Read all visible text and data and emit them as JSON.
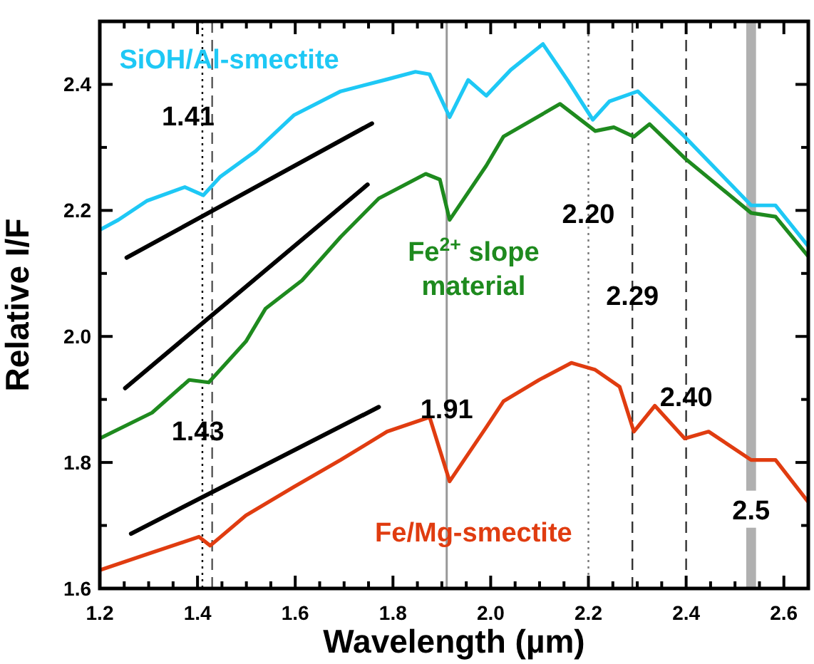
{
  "chart_data": {
    "type": "line",
    "xlabel": "Wavelength (µm)",
    "ylabel": "Relative I/F",
    "xlim": [
      1.2,
      2.65
    ],
    "ylim": [
      1.6,
      2.5
    ],
    "xticks": [
      1.2,
      {
        "value": 1.25,
        "label": null
      },
      {
        "value": 1.3,
        "label": null
      },
      {
        "value": 1.35,
        "label": null
      },
      1.4,
      {
        "value": 1.45,
        "label": null
      },
      {
        "value": 1.5,
        "label": null
      },
      {
        "value": 1.55,
        "label": null
      },
      1.6,
      {
        "value": 1.65,
        "label": null
      },
      {
        "value": 1.7,
        "label": null
      },
      {
        "value": 1.75,
        "label": null
      },
      1.8,
      {
        "value": 1.85,
        "label": null
      },
      {
        "value": 1.9,
        "label": null
      },
      {
        "value": 1.95,
        "label": null
      },
      {
        "value": 2.0,
        "label": "2.0"
      },
      {
        "value": 2.05,
        "label": null
      },
      {
        "value": 2.1,
        "label": null
      },
      {
        "value": 2.15,
        "label": null
      },
      2.2,
      {
        "value": 2.25,
        "label": null
      },
      {
        "value": 2.3,
        "label": null
      },
      {
        "value": 2.35,
        "label": null
      },
      2.4,
      {
        "value": 2.45,
        "label": null
      },
      {
        "value": 2.5,
        "label": null
      },
      {
        "value": 2.55,
        "label": null
      },
      2.6
    ],
    "yticks": [
      1.6,
      {
        "value": 1.7,
        "label": null
      },
      1.8,
      {
        "value": 1.9,
        "label": null
      },
      {
        "value": 2.0,
        "label": "2.0"
      },
      {
        "value": 2.1,
        "label": null
      },
      2.2,
      {
        "value": 2.3,
        "label": null
      },
      2.4
    ],
    "grid": false,
    "marker": "none",
    "line_style": "solid",
    "series": [
      {
        "name": "SiOH/Al-smectite",
        "color": "#1ec8f5",
        "x": [
          1.2,
          1.238,
          1.296,
          1.374,
          1.412,
          1.446,
          1.519,
          1.597,
          1.693,
          1.788,
          1.846,
          1.875,
          1.916,
          1.954,
          1.991,
          2.041,
          2.107,
          2.157,
          2.209,
          2.243,
          2.301,
          2.397,
          2.533,
          2.583,
          2.649
        ],
        "values": [
          2.169,
          2.185,
          2.215,
          2.237,
          2.224,
          2.253,
          2.294,
          2.351,
          2.389,
          2.408,
          2.42,
          2.416,
          2.348,
          2.407,
          2.382,
          2.423,
          2.464,
          2.407,
          2.344,
          2.373,
          2.389,
          2.317,
          2.208,
          2.208,
          2.144
        ]
      },
      {
        "name": "Fe$^{2+}$ slope material",
        "color": "#1e8a1e",
        "x": [
          1.2,
          1.307,
          1.383,
          1.423,
          1.499,
          1.539,
          1.614,
          1.693,
          1.771,
          1.867,
          1.896,
          1.916,
          1.991,
          2.026,
          2.142,
          2.214,
          2.252,
          2.293,
          2.325,
          2.397,
          2.533,
          2.583,
          2.649
        ],
        "values": [
          1.838,
          1.879,
          1.931,
          1.927,
          1.992,
          2.044,
          2.089,
          2.158,
          2.219,
          2.258,
          2.249,
          2.185,
          2.271,
          2.317,
          2.369,
          2.326,
          2.332,
          2.317,
          2.337,
          2.283,
          2.196,
          2.19,
          2.128
        ]
      },
      {
        "name": "Fe/Mg-smectite",
        "color": "#e03c10",
        "x": [
          1.2,
          1.307,
          1.403,
          1.426,
          1.499,
          1.597,
          1.693,
          1.788,
          1.875,
          1.916,
          1.991,
          2.026,
          2.099,
          2.165,
          2.214,
          2.264,
          2.293,
          2.336,
          2.397,
          2.446,
          2.533,
          2.583,
          2.649
        ],
        "values": [
          1.629,
          1.657,
          1.682,
          1.668,
          1.716,
          1.761,
          1.804,
          1.849,
          1.872,
          1.77,
          1.856,
          1.897,
          1.931,
          1.958,
          1.947,
          1.92,
          1.849,
          1.89,
          1.838,
          1.849,
          1.804,
          1.804,
          1.738
        ]
      },
      {
        "color": "#000000",
        "x": [
          1.255,
          1.757
        ],
        "values": [
          2.125,
          2.338
        ]
      },
      {
        "color": "#000000",
        "x": [
          1.252,
          1.748
        ],
        "values": [
          1.918,
          2.241
        ]
      },
      {
        "color": "#000000",
        "x": [
          1.264,
          1.771
        ],
        "values": [
          1.687,
          1.888
        ]
      }
    ],
    "ref_lines": [
      {
        "axis": "x",
        "value": 1.41,
        "label": "1.41",
        "color": "#000000",
        "line_style": "dotted"
      },
      {
        "axis": "x",
        "value": 1.43,
        "label": "1.43",
        "color": "#555555",
        "line_style": "dashed"
      },
      {
        "axis": "x",
        "value": 1.91,
        "label": "1.91",
        "color": "#999999",
        "line_style": "solid"
      },
      {
        "axis": "x",
        "value": 2.2,
        "label": "2.20",
        "color": "#777777",
        "line_style": "dotted"
      },
      {
        "axis": "x",
        "value": 2.29,
        "label": "2.29",
        "color": "#333333",
        "line_style": "dashed"
      },
      {
        "axis": "x",
        "value": 2.4,
        "label": "2.40",
        "color": "#333333",
        "line_style": "dashed"
      }
    ],
    "bands": [
      {
        "axis": "x",
        "from": 2.523,
        "to": 2.543,
        "label": "2.5",
        "color": "#b0b0b0"
      }
    ]
  }
}
